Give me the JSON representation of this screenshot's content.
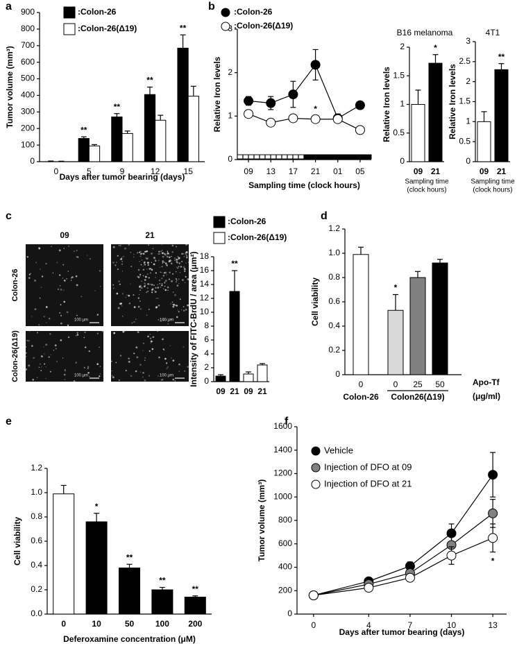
{
  "chart_data": [
    {
      "type": "bar",
      "panel": "a",
      "categories": [
        "0",
        "5",
        "9",
        "12",
        "15"
      ],
      "series": [
        {
          "name": ":Colon-26",
          "color": "#000000",
          "values": [
            0,
            140,
            270,
            405,
            685
          ],
          "errors": [
            4,
            10,
            20,
            45,
            80
          ],
          "annotations": [
            null,
            "**",
            "**",
            "**",
            "**"
          ]
        },
        {
          "name": ":Colon-26(Δ19)",
          "color": "#ffffff",
          "values": [
            0,
            95,
            170,
            250,
            395
          ],
          "errors": [
            3,
            8,
            15,
            30,
            60
          ]
        }
      ],
      "ylim": [
        0,
        900
      ],
      "yticks": [
        0,
        100,
        200,
        300,
        400,
        500,
        600,
        700,
        800,
        900
      ],
      "xlabel": "Days after tumor bearing (days)",
      "ylabel": "Tumor volume (mm³)"
    },
    {
      "type": "line",
      "panel": "b",
      "categories": [
        "09",
        "13",
        "17",
        "21",
        "01",
        "05"
      ],
      "series": [
        {
          "name": ":Colon-26",
          "color": "#000000",
          "values": [
            1.35,
            1.3,
            1.5,
            2.18,
            0.95,
            1.25
          ],
          "errors": [
            0.1,
            0.15,
            0.3,
            0.35,
            0.1,
            0.05
          ]
        },
        {
          "name": ":Colon-26(Δ19)",
          "color": "#ffffff",
          "values": [
            1.05,
            0.85,
            0.95,
            0.93,
            0.93,
            0.68
          ],
          "errors": [
            0.05,
            0.05,
            0.05,
            0.08,
            0.08,
            0.05
          ],
          "annotations": [
            null,
            null,
            null,
            "*",
            null,
            null
          ]
        }
      ],
      "ylim": [
        0,
        3
      ],
      "yticks": [
        0,
        1,
        2,
        3
      ],
      "xlabel": "Sampling time (clock hours)",
      "ylabel": "Relative Iron levels"
    },
    {
      "type": "bar",
      "title": "B16 melanoma",
      "categories": [
        "09",
        "21"
      ],
      "values": [
        1.0,
        1.72
      ],
      "errors": [
        0.25,
        0.15
      ],
      "colors": [
        "#ffffff",
        "#000000"
      ],
      "annotations": [
        null,
        "*"
      ],
      "ylim": [
        0,
        2
      ],
      "yticks": [
        0,
        0.5,
        1,
        1.5,
        2
      ],
      "xlabel": [
        "Sampling time",
        "(clock hours)"
      ],
      "ylabel": "Relative Iron levels"
    },
    {
      "type": "bar",
      "title": "4T1",
      "categories": [
        "09",
        "21"
      ],
      "values": [
        1.0,
        2.3
      ],
      "errors": [
        0.25,
        0.15
      ],
      "colors": [
        "#ffffff",
        "#000000"
      ],
      "annotations": [
        null,
        "**"
      ],
      "ylim": [
        0,
        3
      ],
      "yticks": [
        0,
        0.5,
        1,
        1.5,
        2,
        2.5,
        3
      ],
      "xlabel": [
        "Sampling time",
        "(clock hours)"
      ],
      "ylabel": "Relative Iron levels"
    },
    {
      "type": "bar",
      "panel": "c",
      "categories": [
        "09",
        "21",
        "09",
        "21"
      ],
      "values": [
        0.8,
        13,
        1.1,
        2.4
      ],
      "errors": [
        0.2,
        3,
        0.3,
        0.2
      ],
      "colors": [
        "#000000",
        "#000000",
        "#ffffff",
        "#ffffff"
      ],
      "annotations": [
        null,
        "**",
        null,
        null
      ],
      "legend": [
        {
          "name": ":Colon-26",
          "color": "#000000"
        },
        {
          "name": ":Colon-26(Δ19)",
          "color": "#ffffff"
        }
      ],
      "ylim": [
        0,
        18
      ],
      "yticks": [
        0,
        2,
        4,
        6,
        8,
        10,
        12,
        14,
        16,
        18
      ],
      "ylabel": "Intensity of FITC-BrdU / area (μm²)"
    },
    {
      "type": "bar",
      "panel": "d",
      "categories": [
        "0",
        "0",
        "25",
        "50"
      ],
      "values": [
        0.99,
        0.53,
        0.8,
        0.92
      ],
      "errors": [
        0.06,
        0.13,
        0.05,
        0.03
      ],
      "colors": [
        "#ffffff",
        "#d9d9d9",
        "#808080",
        "#000000"
      ],
      "annotations": [
        null,
        "*",
        null,
        null
      ],
      "groups": [
        "Colon-26",
        "Colon26(Δ19)"
      ],
      "xlabel": [
        "Apo-Tf",
        "(μg/ml)"
      ],
      "ylim": [
        0,
        1.2
      ],
      "yticks": [
        0,
        0.2,
        0.4,
        0.6,
        0.8,
        {
          "value": 1,
          "label": "1.0"
        },
        1.2
      ],
      "ylabel": "Cell viability"
    },
    {
      "type": "bar",
      "panel": "e",
      "categories": [
        "0",
        "10",
        "50",
        "100",
        "200"
      ],
      "values": [
        0.99,
        0.76,
        0.38,
        0.2,
        0.14
      ],
      "errors": [
        0.07,
        0.07,
        0.03,
        0.02,
        0.01
      ],
      "colors": [
        "#ffffff",
        "#000000",
        "#000000",
        "#000000",
        "#000000"
      ],
      "annotations": [
        null,
        "*",
        "**",
        "**",
        "**"
      ],
      "ylim": [
        0,
        1.2
      ],
      "yticks": [
        {
          "value": 0,
          "label": "0.0"
        },
        0.2,
        0.4,
        0.6,
        0.8,
        {
          "value": 1,
          "label": "1.0"
        },
        1.2
      ],
      "xlabel": "Deferoxamine concentration (μM)",
      "ylabel": "Cell viability"
    },
    {
      "type": "line",
      "panel": "f",
      "x": [
        0,
        4,
        7,
        10,
        13
      ],
      "series": [
        {
          "name": "Vehicle",
          "color": "#000000",
          "values": [
            160,
            280,
            410,
            690,
            1190
          ],
          "errors": [
            10,
            20,
            35,
            80,
            190
          ]
        },
        {
          "name": "Injection of DFO at 09",
          "color": "#808080",
          "values": [
            160,
            255,
            350,
            590,
            860
          ],
          "errors": [
            10,
            15,
            30,
            70,
            120
          ]
        },
        {
          "name": "Injection of DFO at 21",
          "color": "#ffffff",
          "values": [
            160,
            225,
            310,
            500,
            650
          ],
          "errors": [
            10,
            15,
            25,
            75,
            120
          ],
          "annotations": [
            null,
            null,
            null,
            null,
            "*"
          ]
        }
      ],
      "xlim": [
        -1.2,
        14
      ],
      "xticks": [
        0,
        4,
        7,
        10,
        13
      ],
      "ylim": [
        0,
        1600
      ],
      "yticks": [
        0,
        200,
        400,
        600,
        800,
        1000,
        1200,
        1400,
        1600
      ],
      "xlabel": "Days after tumor bearing (days)",
      "ylabel": "Tumor volume (mm³)"
    }
  ],
  "micrographs": {
    "columns": [
      "09",
      "21"
    ],
    "rows": [
      "Colon-26",
      "Colon-26(Δ19)"
    ],
    "scale_bar": "100 μm"
  }
}
